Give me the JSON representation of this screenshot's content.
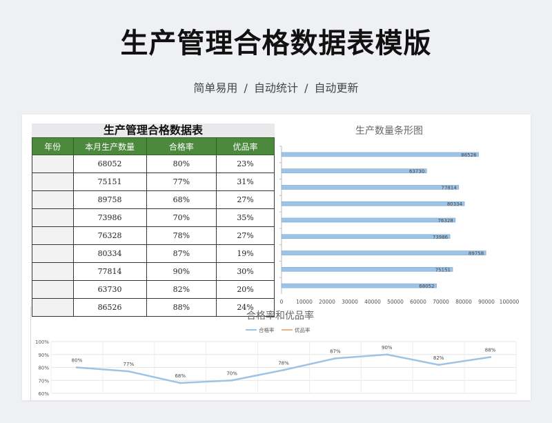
{
  "header": {
    "title": "生产管理合格数据表模版",
    "subtitle": "简单易用  /  自动统计  /  自动更新"
  },
  "table": {
    "title": "生产管理合格数据表",
    "columns": [
      "年份",
      "本月生产数量",
      "合格率",
      "优品率"
    ],
    "rows": [
      {
        "year": "",
        "qty": "68052",
        "pass": "80%",
        "premium": "23%"
      },
      {
        "year": "",
        "qty": "75151",
        "pass": "77%",
        "premium": "31%"
      },
      {
        "year": "",
        "qty": "89758",
        "pass": "68%",
        "premium": "27%"
      },
      {
        "year": "",
        "qty": "73986",
        "pass": "70%",
        "premium": "35%"
      },
      {
        "year": "",
        "qty": "76328",
        "pass": "78%",
        "premium": "27%"
      },
      {
        "year": "",
        "qty": "80334",
        "pass": "87%",
        "premium": "19%"
      },
      {
        "year": "",
        "qty": "77814",
        "pass": "90%",
        "premium": "30%"
      },
      {
        "year": "",
        "qty": "63730",
        "pass": "82%",
        "premium": "20%"
      },
      {
        "year": "",
        "qty": "86526",
        "pass": "88%",
        "premium": "24%"
      }
    ]
  },
  "colors": {
    "header_green": "#4b8a3c",
    "bar_blue": "#9dc3e6",
    "line_blue": "#9dc3e6",
    "line_orange": "#f4b183"
  },
  "chart_data": [
    {
      "type": "bar",
      "title": "生产数量条形图",
      "orientation": "horizontal",
      "values": [
        86526,
        63730,
        77814,
        80334,
        76328,
        73986,
        89758,
        75151,
        68052
      ],
      "data_labels": [
        "86526",
        "63730",
        "77814",
        "80334",
        "76328",
        "73986",
        "89758",
        "75151",
        "68052"
      ],
      "xlim": [
        0,
        100000
      ],
      "xticks": [
        "0",
        "10000",
        "20000",
        "30000",
        "40000",
        "50000",
        "60000",
        "70000",
        "80000",
        "90000",
        "100000"
      ],
      "grid": false
    },
    {
      "type": "line",
      "title": "合格率和优品率",
      "legend": [
        "合格率",
        "优品率"
      ],
      "legend_position": "top",
      "series": [
        {
          "name": "合格率",
          "values": [
            80,
            77,
            68,
            70,
            78,
            87,
            90,
            82,
            88
          ],
          "labels": [
            "80%",
            "77%",
            "68%",
            "70%",
            "78%",
            "87%",
            "90%",
            "82%",
            "88%"
          ]
        }
      ],
      "ylim": [
        60,
        100
      ],
      "yticks": [
        "100%",
        "90%",
        "80%",
        "70%",
        "60%"
      ],
      "grid": true
    }
  ]
}
